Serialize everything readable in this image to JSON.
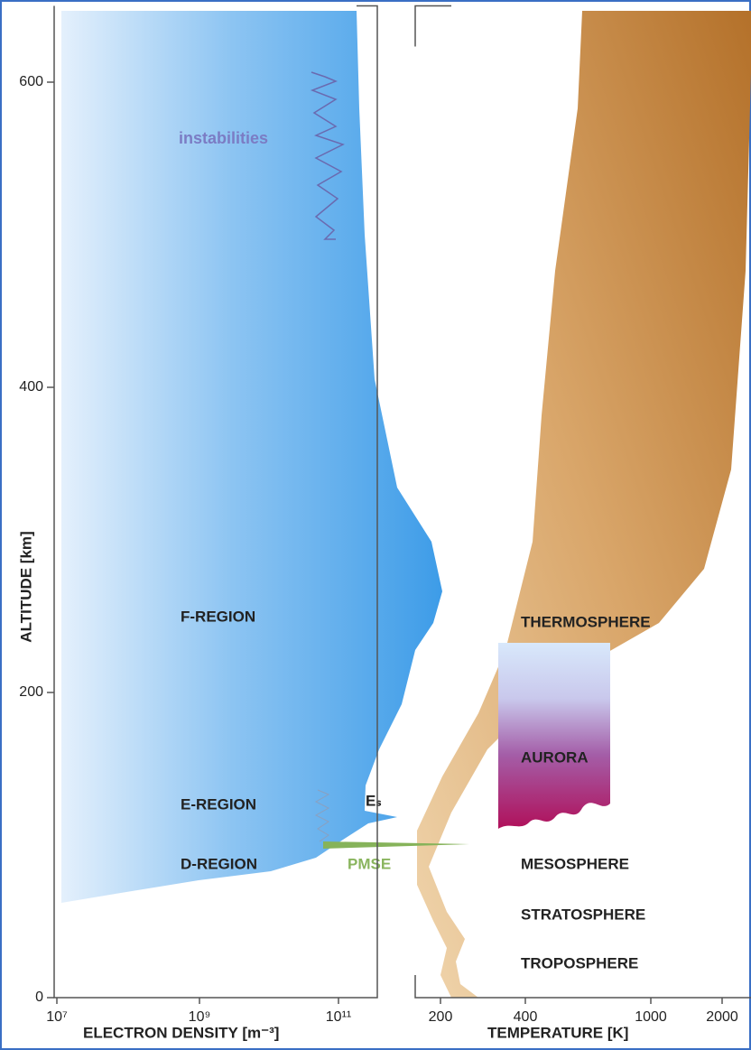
{
  "chart_data": {
    "type": "diagram",
    "y_axis": {
      "label": "ALTITUDE [km]",
      "ylim": [
        0,
        650
      ],
      "yticks": [
        0,
        200,
        400,
        600
      ]
    },
    "density_axis": {
      "label": "ELECTRON DENSITY [m⁻³]",
      "ticks": [
        "10⁷",
        "10⁹",
        "10¹¹"
      ]
    },
    "temperature_axis": {
      "label": "TEMPERATURE [K]",
      "ticks": [
        200,
        400,
        1000,
        2000
      ]
    },
    "labels": {
      "instabilities": "instabilities",
      "f_region": "F-REGION",
      "e_region": "E-REGION",
      "d_region": "D-REGION",
      "es": "Eₛ",
      "pmse": "PMSE",
      "thermosphere": "THERMOSPHERE",
      "aurora": "AURORA",
      "mesosphere": "MESOSPHERE",
      "stratosphere": "STRATOSPHERE",
      "troposphere": "TROPOSPHERE"
    }
  }
}
